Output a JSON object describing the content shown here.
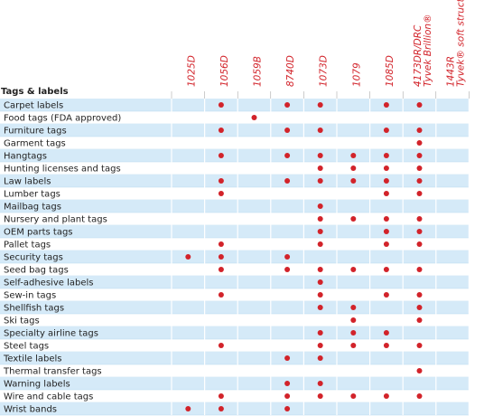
{
  "section": "Tags & labels",
  "columns": [
    {
      "lines": [
        "1025D"
      ]
    },
    {
      "lines": [
        "1056D"
      ]
    },
    {
      "lines": [
        "1059B"
      ]
    },
    {
      "lines": [
        "8740D"
      ]
    },
    {
      "lines": [
        "1073D"
      ]
    },
    {
      "lines": [
        "1079"
      ]
    },
    {
      "lines": [
        "1085D"
      ]
    },
    {
      "lines": [
        "4173DR/DRC",
        "Tyvek Brillion®"
      ]
    },
    {
      "lines": [
        "1443R",
        "Tyvek® soft structure"
      ]
    }
  ],
  "rows": [
    {
      "label": "Carpet labels",
      "cells": [
        0,
        1,
        0,
        1,
        1,
        0,
        1,
        1,
        0
      ]
    },
    {
      "label": "Food tags (FDA approved)",
      "cells": [
        0,
        0,
        1,
        0,
        0,
        0,
        0,
        0,
        0
      ]
    },
    {
      "label": "Furniture tags",
      "cells": [
        0,
        1,
        0,
        1,
        1,
        0,
        1,
        1,
        0
      ]
    },
    {
      "label": "Garment tags",
      "cells": [
        0,
        0,
        0,
        0,
        0,
        0,
        0,
        1,
        0
      ]
    },
    {
      "label": "Hangtags",
      "cells": [
        0,
        1,
        0,
        1,
        1,
        1,
        1,
        1,
        0
      ]
    },
    {
      "label": "Hunting licenses and tags",
      "cells": [
        0,
        0,
        0,
        0,
        1,
        1,
        1,
        1,
        0
      ]
    },
    {
      "label": "Law labels",
      "cells": [
        0,
        1,
        0,
        1,
        1,
        1,
        1,
        1,
        0
      ]
    },
    {
      "label": "Lumber tags",
      "cells": [
        0,
        1,
        0,
        0,
        0,
        0,
        1,
        1,
        0
      ]
    },
    {
      "label": "Mailbag tags",
      "cells": [
        0,
        0,
        0,
        0,
        1,
        0,
        0,
        0,
        0
      ]
    },
    {
      "label": "Nursery and plant tags",
      "cells": [
        0,
        0,
        0,
        0,
        1,
        1,
        1,
        1,
        0
      ]
    },
    {
      "label": "OEM parts tags",
      "cells": [
        0,
        0,
        0,
        0,
        1,
        0,
        1,
        1,
        0
      ]
    },
    {
      "label": "Pallet tags",
      "cells": [
        0,
        1,
        0,
        0,
        1,
        0,
        1,
        1,
        0
      ]
    },
    {
      "label": "Security tags",
      "cells": [
        1,
        1,
        0,
        1,
        0,
        0,
        0,
        0,
        0
      ]
    },
    {
      "label": "Seed bag tags",
      "cells": [
        0,
        1,
        0,
        1,
        1,
        1,
        1,
        1,
        0
      ]
    },
    {
      "label": "Self-adhesive labels",
      "cells": [
        0,
        0,
        0,
        0,
        1,
        0,
        0,
        0,
        0
      ]
    },
    {
      "label": "Sew-in tags",
      "cells": [
        0,
        1,
        0,
        0,
        1,
        0,
        1,
        1,
        0
      ]
    },
    {
      "label": "Shellfish tags",
      "cells": [
        0,
        0,
        0,
        0,
        1,
        1,
        0,
        1,
        0
      ]
    },
    {
      "label": "Ski tags",
      "cells": [
        0,
        0,
        0,
        0,
        0,
        1,
        0,
        1,
        0
      ]
    },
    {
      "label": "Specialty airline tags",
      "cells": [
        0,
        0,
        0,
        0,
        1,
        1,
        1,
        0,
        0
      ]
    },
    {
      "label": "Steel tags",
      "cells": [
        0,
        1,
        0,
        0,
        1,
        1,
        1,
        1,
        0
      ]
    },
    {
      "label": "Textile labels",
      "cells": [
        0,
        0,
        0,
        1,
        1,
        0,
        0,
        0,
        0
      ]
    },
    {
      "label": "Thermal transfer tags",
      "cells": [
        0,
        0,
        0,
        0,
        0,
        0,
        0,
        1,
        0
      ]
    },
    {
      "label": "Warning labels",
      "cells": [
        0,
        0,
        0,
        1,
        1,
        0,
        0,
        0,
        0
      ]
    },
    {
      "label": "Wire and cable tags",
      "cells": [
        0,
        1,
        0,
        1,
        1,
        1,
        1,
        1,
        0
      ]
    },
    {
      "label": "Wrist bands",
      "cells": [
        1,
        1,
        0,
        1,
        0,
        0,
        0,
        0,
        0
      ]
    }
  ]
}
